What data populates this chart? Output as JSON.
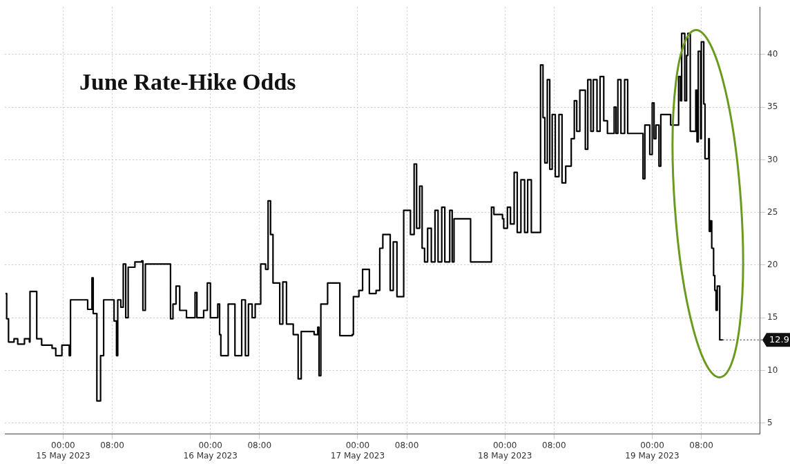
{
  "chart_data": {
    "type": "step",
    "title": "June Rate-Hike Odds",
    "x": [
      "2023-05-14T14:36",
      "2023-05-14T14:48",
      "2023-05-14T15:06",
      "2023-05-14T16:00",
      "2023-05-14T16:36",
      "2023-05-14T17:42",
      "2023-05-14T18:30",
      "2023-05-14T18:36",
      "2023-05-14T19:36",
      "2023-05-14T19:42",
      "2023-05-14T20:30",
      "2023-05-14T22:12",
      "2023-05-14T22:48",
      "2023-05-14T23:42",
      "2023-05-14T23:48",
      "2023-05-15T01:00",
      "2023-05-15T01:12",
      "2023-05-15T03:18",
      "2023-05-15T04:00",
      "2023-05-15T04:42",
      "2023-05-15T04:54",
      "2023-05-15T05:30",
      "2023-05-15T06:06",
      "2023-05-15T06:36",
      "2023-05-15T07:48",
      "2023-05-15T08:18",
      "2023-05-15T08:42",
      "2023-05-15T08:54",
      "2023-05-15T09:24",
      "2023-05-15T09:48",
      "2023-05-15T10:12",
      "2023-05-15T10:36",
      "2023-05-15T11:42",
      "2023-05-15T12:48",
      "2023-05-15T13:00",
      "2023-05-15T13:24",
      "2023-05-15T17:18",
      "2023-05-15T17:30",
      "2023-05-15T17:54",
      "2023-05-15T18:24",
      "2023-05-15T19:00",
      "2023-05-15T20:06",
      "2023-05-15T21:30",
      "2023-05-15T21:48",
      "2023-05-15T22:54",
      "2023-05-15T23:30",
      "2023-05-16T00:00",
      "2023-05-16T01:12",
      "2023-05-16T01:30",
      "2023-05-16T01:42",
      "2023-05-16T02:54",
      "2023-05-16T04:00",
      "2023-05-16T05:06",
      "2023-05-16T05:42",
      "2023-05-16T06:12",
      "2023-05-16T06:48",
      "2023-05-16T07:18",
      "2023-05-16T08:12",
      "2023-05-16T09:00",
      "2023-05-16T09:24",
      "2023-05-16T09:48",
      "2023-05-16T10:12",
      "2023-05-16T11:18",
      "2023-05-16T11:48",
      "2023-05-16T12:24",
      "2023-05-16T13:30",
      "2023-05-16T14:18",
      "2023-05-16T14:48",
      "2023-05-16T16:54",
      "2023-05-16T17:30",
      "2023-05-16T17:42",
      "2023-05-16T18:00",
      "2023-05-16T19:06",
      "2023-05-16T20:48",
      "2023-05-16T21:06",
      "2023-05-16T23:06",
      "2023-05-16T23:18",
      "2023-05-17T00:12",
      "2023-05-17T00:48",
      "2023-05-17T01:54",
      "2023-05-17T03:00",
      "2023-05-17T03:36",
      "2023-05-17T04:06",
      "2023-05-17T05:18",
      "2023-05-17T05:48",
      "2023-05-17T06:24",
      "2023-05-17T07:30",
      "2023-05-17T08:36",
      "2023-05-17T09:12",
      "2023-05-17T09:36",
      "2023-05-17T10:06",
      "2023-05-17T10:30",
      "2023-05-17T10:54",
      "2023-05-17T11:24",
      "2023-05-17T12:00",
      "2023-05-17T12:36",
      "2023-05-17T13:06",
      "2023-05-17T13:42",
      "2023-05-17T14:12",
      "2023-05-17T15:00",
      "2023-05-17T15:24",
      "2023-05-17T15:42",
      "2023-05-17T18:24",
      "2023-05-17T21:48",
      "2023-05-17T22:12",
      "2023-05-17T23:36",
      "2023-05-17T23:48",
      "2023-05-18T00:24",
      "2023-05-18T00:54",
      "2023-05-18T01:30",
      "2023-05-18T02:00",
      "2023-05-18T02:36",
      "2023-05-18T03:12",
      "2023-05-18T03:42",
      "2023-05-18T04:18",
      "2023-05-18T05:48",
      "2023-05-18T06:12",
      "2023-05-18T06:30",
      "2023-05-18T06:54",
      "2023-05-18T07:18",
      "2023-05-18T07:42",
      "2023-05-18T08:12",
      "2023-05-18T08:48",
      "2023-05-18T09:18",
      "2023-05-18T09:54",
      "2023-05-18T10:48",
      "2023-05-18T11:18",
      "2023-05-18T11:42",
      "2023-05-18T12:12",
      "2023-05-18T13:06",
      "2023-05-18T13:30",
      "2023-05-18T14:00",
      "2023-05-18T14:24",
      "2023-05-18T15:00",
      "2023-05-18T15:30",
      "2023-05-18T16:06",
      "2023-05-18T16:42",
      "2023-05-18T17:48",
      "2023-05-18T18:06",
      "2023-05-18T18:24",
      "2023-05-18T18:54",
      "2023-05-18T19:30",
      "2023-05-18T20:00",
      "2023-05-18T22:30",
      "2023-05-18T22:48",
      "2023-05-18T23:36",
      "2023-05-19T00:00",
      "2023-05-19T00:18",
      "2023-05-19T00:36",
      "2023-05-19T01:06",
      "2023-05-19T01:24",
      "2023-05-19T03:00",
      "2023-05-19T04:18",
      "2023-05-19T04:36",
      "2023-05-19T04:48",
      "2023-05-19T05:18",
      "2023-05-19T05:36",
      "2023-05-19T05:48",
      "2023-05-19T06:12",
      "2023-05-19T07:06",
      "2023-05-19T07:18",
      "2023-05-19T07:30",
      "2023-05-19T07:54",
      "2023-05-19T08:00",
      "2023-05-19T08:24",
      "2023-05-19T08:36",
      "2023-05-19T09:12",
      "2023-05-19T09:18",
      "2023-05-19T09:30",
      "2023-05-19T09:42",
      "2023-05-19T10:00",
      "2023-05-19T10:12",
      "2023-05-19T10:24",
      "2023-05-19T10:36",
      "2023-05-19T10:54",
      "2023-05-19T11:00",
      "2023-05-19T11:30"
    ],
    "series": [
      {
        "color": "#000000",
        "values": [
          17.3,
          14.9,
          12.7,
          13.0,
          12.5,
          13.0,
          12.7,
          17.5,
          17.5,
          13.0,
          12.4,
          12.1,
          11.4,
          11.4,
          12.4,
          11.4,
          16.7,
          16.7,
          15.8,
          18.8,
          15.4,
          7.1,
          11.4,
          16.7,
          16.7,
          14.7,
          11.4,
          16.7,
          16.0,
          20.1,
          15.0,
          19.8,
          20.3,
          20.4,
          15.7,
          20.1,
          20.1,
          14.9,
          16.3,
          18.0,
          15.7,
          15.0,
          17.4,
          15.0,
          15.7,
          18.3,
          15.0,
          16.3,
          13.4,
          11.4,
          16.3,
          11.4,
          16.7,
          11.4,
          16.3,
          15.0,
          16.3,
          20.1,
          19.6,
          26.1,
          22.9,
          18.3,
          14.4,
          18.4,
          14.4,
          13.4,
          9.2,
          13.7,
          13.4,
          14.1,
          9.5,
          16.3,
          18.3,
          18.3,
          13.3,
          13.4,
          17.0,
          17.6,
          19.6,
          17.3,
          17.6,
          21.6,
          22.9,
          17.6,
          22.2,
          17.0,
          25.2,
          22.9,
          29.6,
          23.5,
          27.5,
          21.6,
          20.3,
          23.5,
          20.3,
          25.2,
          20.3,
          25.5,
          20.3,
          25.2,
          20.3,
          24.4,
          20.3,
          25.5,
          24.8,
          24.4,
          23.5,
          25.5,
          23.9,
          28.8,
          23.1,
          28.1,
          23.1,
          28.1,
          23.1,
          39.0,
          34.0,
          29.7,
          37.6,
          29.1,
          34.3,
          28.4,
          34.3,
          27.8,
          29.4,
          32.0,
          35.6,
          32.7,
          36.6,
          31.0,
          37.6,
          32.7,
          37.6,
          32.7,
          37.9,
          33.7,
          32.5,
          35.0,
          32.5,
          37.6,
          32.5,
          37.6,
          32.5,
          28.2,
          33.3,
          30.5,
          35.4,
          32.0,
          33.3,
          29.4,
          34.3,
          33.3,
          37.9,
          35.6,
          42.0,
          35.6,
          39.9,
          42.0,
          32.7,
          36.6,
          31.7,
          40.3,
          32.0,
          41.2,
          35.3,
          30.1,
          32.0,
          23.2,
          24.2,
          21.6,
          19.0,
          17.6,
          15.7,
          18.0,
          18.0,
          12.9,
          12.9
        ]
      }
    ],
    "xlim": [
      "2023-05-14T14:30",
      "2023-05-19T17:30"
    ],
    "xticks": [
      {
        "value": "2023-05-15T00:00",
        "label": "00:00\n15 May 2023"
      },
      {
        "value": "2023-05-15T08:00",
        "label": "08:00"
      },
      {
        "value": "2023-05-16T00:00",
        "label": "00:00\n16 May 2023"
      },
      {
        "value": "2023-05-16T08:00",
        "label": "08:00"
      },
      {
        "value": "2023-05-17T00:00",
        "label": "00:00\n17 May 2023"
      },
      {
        "value": "2023-05-17T08:00",
        "label": "08:00"
      },
      {
        "value": "2023-05-18T00:00",
        "label": "00:00\n18 May 2023"
      },
      {
        "value": "2023-05-18T08:00",
        "label": "08:00"
      },
      {
        "value": "2023-05-19T00:00",
        "label": "00:00\n19 May 2023"
      },
      {
        "value": "2023-05-19T08:00",
        "label": "08:00"
      }
    ],
    "ylim": [
      4,
      44.5
    ],
    "yticks": [
      5,
      10,
      15,
      20,
      25,
      30,
      35,
      40
    ],
    "grid": true,
    "line_style": "solid",
    "marker": "none",
    "annotations": [
      {
        "text": "12.9",
        "x": "2023-05-19T11:30",
        "y": 12.9
      }
    ]
  }
}
